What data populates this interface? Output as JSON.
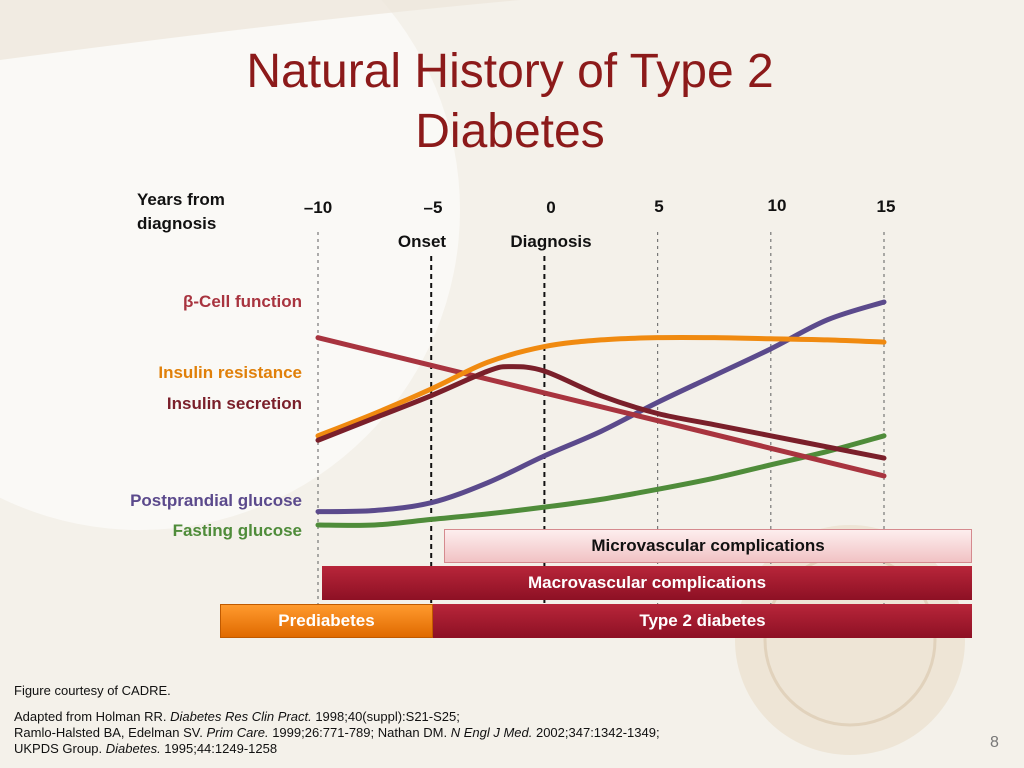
{
  "title": {
    "line1": "Natural History of Type 2",
    "line2": "Diabetes"
  },
  "chart_data": {
    "type": "line",
    "xlabel": "Years from diagnosis",
    "xlabel_lines": [
      "Years from",
      "diagnosis"
    ],
    "x_ticks": [
      -10,
      -5,
      0,
      5,
      10,
      15
    ],
    "x_tick_labels": [
      "–10",
      "–5",
      "0",
      "5",
      "10",
      "15"
    ],
    "xlim": [
      -10,
      15
    ],
    "ylim": [
      0,
      100
    ],
    "markers": [
      {
        "x": -5,
        "label": "Onset"
      },
      {
        "x": 0,
        "label": "Diagnosis"
      }
    ],
    "series": [
      {
        "name": "β-Cell function",
        "color": "#a8343f",
        "x": [
          -10,
          15
        ],
        "y": [
          84,
          22
        ]
      },
      {
        "name": "Insulin resistance",
        "color": "#f08a10",
        "x": [
          -10,
          -7.5,
          -5,
          -2.5,
          0,
          2.5,
          5,
          7.5,
          10,
          12.5,
          15
        ],
        "y": [
          40,
          50,
          61,
          73,
          80,
          83,
          84,
          84,
          83.5,
          83,
          82
        ]
      },
      {
        "name": "Insulin secretion",
        "color": "#7a1f2a",
        "x": [
          -10,
          -7.5,
          -5,
          -2.5,
          -1.5,
          0,
          2.5,
          5,
          7.5,
          10,
          12.5,
          15
        ],
        "y": [
          38,
          48,
          58,
          69,
          71,
          69,
          58,
          50,
          45,
          40,
          35,
          30
        ]
      },
      {
        "name": "Postprandial glucose",
        "color": "#5b4a8c",
        "x": [
          -10,
          -7.5,
          -5,
          -2.5,
          0,
          2.5,
          5,
          7.5,
          10,
          12.5,
          15
        ],
        "y": [
          6,
          6.5,
          10,
          19,
          31,
          42,
          55,
          67,
          79,
          92,
          100
        ]
      },
      {
        "name": "Fasting glucose",
        "color": "#4f8c3a",
        "x": [
          -10,
          -7.5,
          -5,
          -2.5,
          0,
          2.5,
          5,
          7.5,
          10,
          12.5,
          15
        ],
        "y": [
          0,
          0,
          2.5,
          5,
          8,
          11.5,
          16,
          21,
          27,
          33,
          40
        ]
      }
    ],
    "series_labels": [
      {
        "text": "β-Cell function",
        "color": "#a8343f"
      },
      {
        "text": "Insulin resistance",
        "color": "#e0800a"
      },
      {
        "text": "Insulin secretion",
        "color": "#7a1f2a"
      },
      {
        "text": "Postprandial glucose",
        "color": "#5b4a8c"
      },
      {
        "text": "Fasting glucose",
        "color": "#4f8c3a"
      }
    ]
  },
  "bars": {
    "micro": "Microvascular complications",
    "macro": "Macrovascular complications",
    "prediabetes": "Prediabetes",
    "type2": "Type 2 diabetes"
  },
  "footnotes": {
    "courtesy": "Figure courtesy of CADRE.",
    "r1a": "Adapted from Holman RR. ",
    "r1b": "Diabetes Res Clin Pract.",
    "r1c": " 1998;40(suppl):S21-S25;",
    "r2a": "Ramlo-Halsted BA, Edelman SV. ",
    "r2b": "Prim Care.",
    "r2c": " 1999;26:771-789; Nathan DM. ",
    "r2d": "N Engl J Med.",
    "r2e": " 2002;347:1342-1349;",
    "r3a": "UKPDS Group. ",
    "r3b": "Diabetes.",
    "r3c": " 1995;44:1249-1258"
  },
  "page_number": "8"
}
